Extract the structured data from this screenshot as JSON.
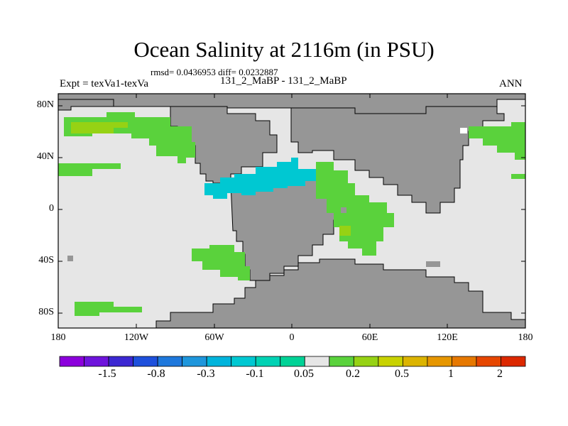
{
  "title": "Ocean Salinity at 2116m (in PSU)",
  "stats_text": "rmsd= 0.0436953 diff= 0.0232887",
  "experiment_label": "Expt = texVa1-texVa",
  "cases_label": "131_2_MaBP - 131_2_MaBP",
  "season_label": "ANN",
  "colors": {
    "land": "#969696",
    "ocean_neutral": "#e6e6e6",
    "green": "#5ad23c",
    "yellowgreen": "#96d214",
    "cyan": "#00c8d2",
    "coast": "#000000"
  },
  "chart_data": {
    "type": "heatmap",
    "title": "Ocean Salinity at 2116m (in PSU)",
    "variable": "salinity difference",
    "units": "PSU",
    "lon_range": [
      -180,
      180
    ],
    "lat_range": [
      -90,
      90
    ],
    "x_ticks": [
      "180",
      "120W",
      "60W",
      "0",
      "60E",
      "120E",
      "180"
    ],
    "y_ticks": [
      "80N",
      "40N",
      "0",
      "40S",
      "80S"
    ],
    "colorbar": {
      "bins": 18,
      "colors": [
        "#8c00dc",
        "#6e14dc",
        "#3c28d2",
        "#1e50dc",
        "#1e78dc",
        "#1e96dc",
        "#00b4dc",
        "#00c8d2",
        "#00d2b4",
        "#00d296",
        "#e6e6e6",
        "#5ad23c",
        "#96d214",
        "#c8d200",
        "#dcb400",
        "#e69600",
        "#e67800",
        "#e64600",
        "#dc2800"
      ],
      "labels": [
        "-1.5",
        "-0.8",
        "-0.3",
        "-0.1",
        "0.05",
        "0.2",
        "0.5",
        "1",
        "2"
      ]
    }
  }
}
